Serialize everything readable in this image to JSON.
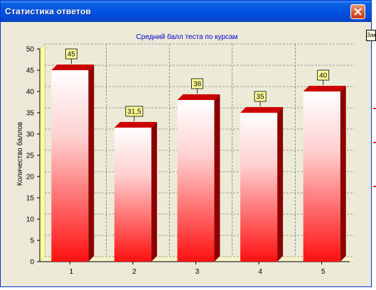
{
  "window": {
    "title": "Статистика ответов",
    "close_icon": "close-icon"
  },
  "tooltip": {
    "text": "Зак"
  },
  "chart_data": {
    "type": "bar",
    "title": "Средний балл теста по курсам",
    "ylabel": "Количество баллов",
    "xlabel": "",
    "categories": [
      "1",
      "2",
      "3",
      "4",
      "5"
    ],
    "values": [
      45,
      31.5,
      38,
      35,
      40
    ],
    "value_labels": [
      "45",
      "31,5",
      "38",
      "35",
      "40"
    ],
    "ylim": [
      0,
      50
    ],
    "yticks": [
      0,
      5,
      10,
      15,
      20,
      25,
      30,
      35,
      40,
      45,
      50
    ],
    "grid": true,
    "legend": "none",
    "colors": {
      "bar_top": "#ffffff",
      "bar_bottom": "#ff1a1a",
      "bar_side": "#8b0000",
      "label_bg": "#ffff99",
      "title": "#0000cc",
      "plot_bg": "#ecebd8",
      "floor": "#ffff99"
    }
  }
}
